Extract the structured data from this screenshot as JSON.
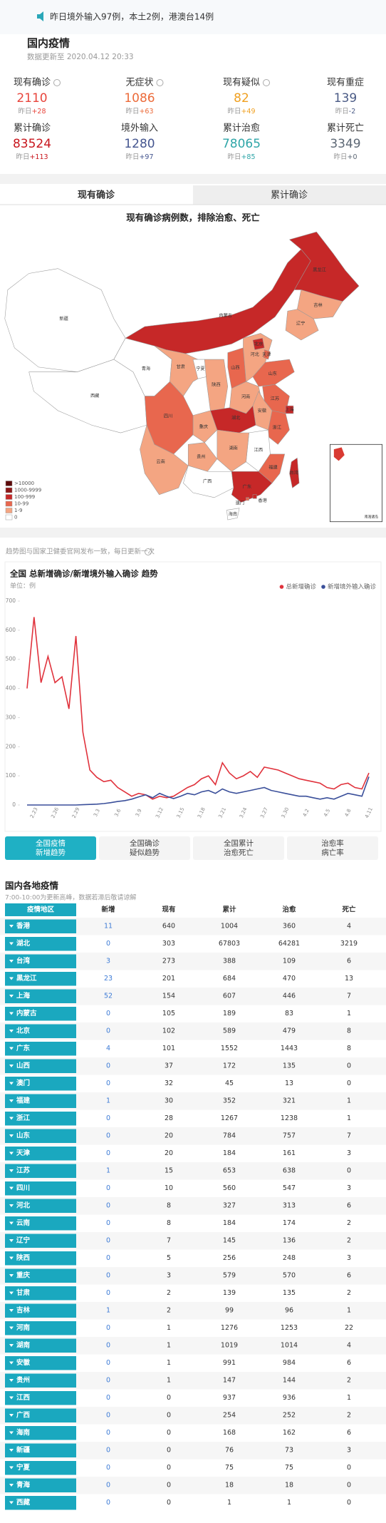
{
  "notice": "昨日境外输入97例，本土2例，港澳台14例",
  "header": {
    "title": "国内疫情",
    "update": "数据更新至 2020.04.12 20:33"
  },
  "stats": [
    {
      "label": "现有确诊",
      "value": 2110,
      "change_label": "昨日",
      "change": "+28",
      "color": "#e8453c"
    },
    {
      "label": "无症状",
      "value": 1086,
      "change_label": "昨日",
      "change": "+63",
      "color": "#ec6b3a"
    },
    {
      "label": "现有疑似",
      "value": 82,
      "change_label": "昨日",
      "change": "+49",
      "color": "#f0a020"
    },
    {
      "label": "现有重症",
      "value": 139,
      "change_label": "昨日",
      "change": "-2",
      "color": "#4b5b86"
    },
    {
      "label": "累计确诊",
      "value": 83524,
      "change_label": "昨日",
      "change": "+113",
      "color": "#c8161d"
    },
    {
      "label": "境外输入",
      "value": 1280,
      "change_label": "昨日",
      "change": "+97",
      "color": "#44558f"
    },
    {
      "label": "累计治愈",
      "value": 78065,
      "change_label": "昨日",
      "change": "+85",
      "color": "#2fa6a8"
    },
    {
      "label": "累计死亡",
      "value": 3349,
      "change_label": "昨日",
      "change": "+0",
      "color": "#5d6875"
    }
  ],
  "tabs": [
    "现有确诊",
    "累计确诊"
  ],
  "map": {
    "title": "现有确诊病例数，排除治愈、死亡",
    "legend": [
      {
        "label": ">10000",
        "color": "#5c0a0a"
      },
      {
        "label": "1000-9999",
        "color": "#8c1717"
      },
      {
        "label": "100-999",
        "color": "#c62828"
      },
      {
        "label": "10-99",
        "color": "#e8674e"
      },
      {
        "label": "1-9",
        "color": "#f4a582"
      },
      {
        "label": "0",
        "color": "#ffffff"
      }
    ],
    "labels": [
      "新疆",
      "西藏",
      "青海",
      "内蒙古",
      "黑龙江",
      "吉林",
      "辽宁",
      "甘肃",
      "宁夏",
      "陕西",
      "山西",
      "河北",
      "北京",
      "天津",
      "山东",
      "河南",
      "江苏",
      "上海",
      "安徽",
      "湖北",
      "重庆",
      "四川",
      "浙江",
      "江西",
      "湖南",
      "贵州",
      "云南",
      "广西",
      "广东",
      "福建",
      "台湾",
      "海南",
      "香港",
      "澳门"
    ],
    "inset": "南海诸岛"
  },
  "source_note": "趋势图与国家卫健委官网发布一致，每日更新一次",
  "chart_data": {
    "type": "line",
    "title": "全国 总新增确诊/新增境外输入确诊 趋势",
    "unit": "单位：例",
    "categories": [
      null,
      "2.23",
      null,
      null,
      "2.26",
      null,
      null,
      "2.29",
      null,
      null,
      "3.3",
      null,
      null,
      "3.6",
      null,
      null,
      "3.9",
      null,
      null,
      "3.12",
      null,
      null,
      "3.15",
      null,
      null,
      "3.18",
      null,
      null,
      "3.21",
      null,
      null,
      "3.24",
      null,
      null,
      "3.27",
      null,
      null,
      "3.30",
      null,
      null,
      "4.2",
      null,
      null,
      "4.5",
      null,
      null,
      "4.8",
      null,
      null,
      "4.11"
    ],
    "series": [
      {
        "name": "总新增确诊",
        "color": "#e0323c",
        "values": [
          400,
          645,
          420,
          510,
          420,
          440,
          330,
          580,
          250,
          120,
          95,
          80,
          85,
          60,
          45,
          30,
          40,
          35,
          20,
          30,
          25,
          30,
          45,
          60,
          70,
          90,
          100,
          70,
          145,
          110,
          90,
          100,
          115,
          95,
          130,
          125,
          120,
          110,
          100,
          90,
          85,
          80,
          75,
          60,
          55,
          70,
          75,
          60,
          55,
          110
        ]
      },
      {
        "name": "新增境外输入确诊",
        "color": "#3a4f9a",
        "values": [
          0,
          0,
          0,
          0,
          0,
          0,
          0,
          0,
          1,
          2,
          3,
          5,
          8,
          12,
          15,
          20,
          28,
          35,
          25,
          40,
          30,
          22,
          30,
          40,
          35,
          45,
          50,
          40,
          55,
          45,
          40,
          45,
          50,
          55,
          60,
          50,
          45,
          40,
          35,
          30,
          30,
          25,
          20,
          25,
          20,
          30,
          40,
          35,
          30,
          97
        ]
      }
    ],
    "ylim": [
      0,
      700
    ],
    "yticks": [
      0,
      100,
      200,
      300,
      400,
      500,
      600,
      700
    ],
    "grid": false,
    "legend": "top-right"
  },
  "buttons": [
    [
      "全国疫情",
      "新增趋势"
    ],
    [
      "全国确诊",
      "疑似趋势"
    ],
    [
      "全国累计",
      "治愈死亡"
    ],
    [
      "治愈率",
      "病亡率"
    ]
  ],
  "regions": {
    "title": "国内各地疫情",
    "subtitle": "7:00-10:00为更新高峰，数据若滞后敬请谅解",
    "columns": [
      "疫情地区",
      "新增",
      "现有",
      "累计",
      "治愈",
      "死亡"
    ],
    "rows": [
      [
        "香港",
        11,
        640,
        1004,
        360,
        4
      ],
      [
        "湖北",
        0,
        303,
        67803,
        64281,
        3219
      ],
      [
        "台湾",
        3,
        273,
        388,
        109,
        6
      ],
      [
        "黑龙江",
        23,
        201,
        684,
        470,
        13
      ],
      [
        "上海",
        52,
        154,
        607,
        446,
        7
      ],
      [
        "内蒙古",
        0,
        105,
        189,
        83,
        1
      ],
      [
        "北京",
        0,
        102,
        589,
        479,
        8
      ],
      [
        "广东",
        4,
        101,
        1552,
        1443,
        8
      ],
      [
        "山西",
        0,
        37,
        172,
        135,
        0
      ],
      [
        "澳门",
        0,
        32,
        45,
        13,
        0
      ],
      [
        "福建",
        1,
        30,
        352,
        321,
        1
      ],
      [
        "浙江",
        0,
        28,
        1267,
        1238,
        1
      ],
      [
        "山东",
        0,
        20,
        784,
        757,
        7
      ],
      [
        "天津",
        0,
        20,
        184,
        161,
        3
      ],
      [
        "江苏",
        1,
        15,
        653,
        638,
        0
      ],
      [
        "四川",
        0,
        10,
        560,
        547,
        3
      ],
      [
        "河北",
        0,
        8,
        327,
        313,
        6
      ],
      [
        "云南",
        0,
        8,
        184,
        174,
        2
      ],
      [
        "辽宁",
        0,
        7,
        145,
        136,
        2
      ],
      [
        "陕西",
        0,
        5,
        256,
        248,
        3
      ],
      [
        "重庆",
        0,
        3,
        579,
        570,
        6
      ],
      [
        "甘肃",
        0,
        2,
        139,
        135,
        2
      ],
      [
        "吉林",
        1,
        2,
        99,
        96,
        1
      ],
      [
        "河南",
        0,
        1,
        1276,
        1253,
        22
      ],
      [
        "湖南",
        0,
        1,
        1019,
        1014,
        4
      ],
      [
        "安徽",
        0,
        1,
        991,
        984,
        6
      ],
      [
        "贵州",
        0,
        1,
        147,
        144,
        2
      ],
      [
        "江西",
        0,
        0,
        937,
        936,
        1
      ],
      [
        "广西",
        0,
        0,
        254,
        252,
        2
      ],
      [
        "海南",
        0,
        0,
        168,
        162,
        6
      ],
      [
        "新疆",
        0,
        0,
        76,
        73,
        3
      ],
      [
        "宁夏",
        0,
        0,
        75,
        75,
        0
      ],
      [
        "青海",
        0,
        0,
        18,
        18,
        0
      ],
      [
        "西藏",
        0,
        0,
        1,
        1,
        0
      ]
    ]
  }
}
